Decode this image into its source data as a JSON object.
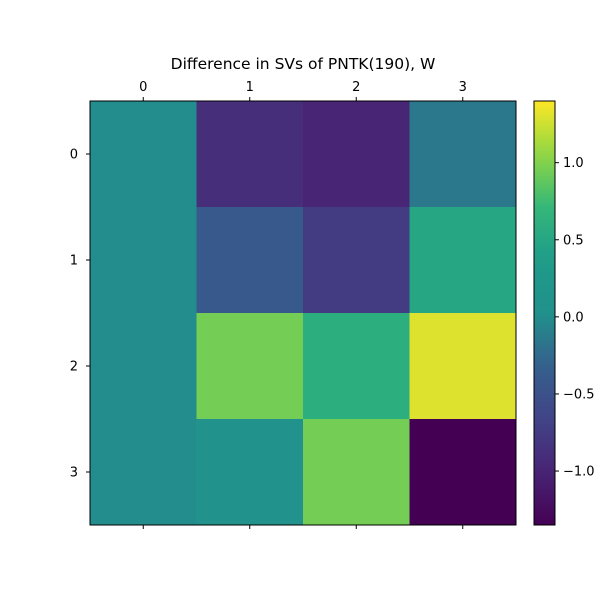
{
  "chart_data": {
    "type": "heatmap",
    "title": "Difference in SVs of PNTK(190), W",
    "x_ticks": [
      "0",
      "1",
      "2",
      "3"
    ],
    "y_ticks": [
      "0",
      "1",
      "2",
      "3"
    ],
    "values": [
      [
        0.0,
        -0.9,
        -1.0,
        -0.15
      ],
      [
        0.0,
        -0.4,
        -0.75,
        0.5
      ],
      [
        0.0,
        0.95,
        0.6,
        1.3
      ],
      [
        0.0,
        0.05,
        0.95,
        -1.35
      ]
    ],
    "colorbar": {
      "vmin": -1.35,
      "vmax": 1.4,
      "ticks": [
        -1.0,
        -0.5,
        0.0,
        0.5,
        1.0
      ],
      "tick_labels": [
        "−1.0",
        "−0.5",
        "0.0",
        "0.5",
        "1.0"
      ]
    },
    "colormap": "viridis"
  }
}
